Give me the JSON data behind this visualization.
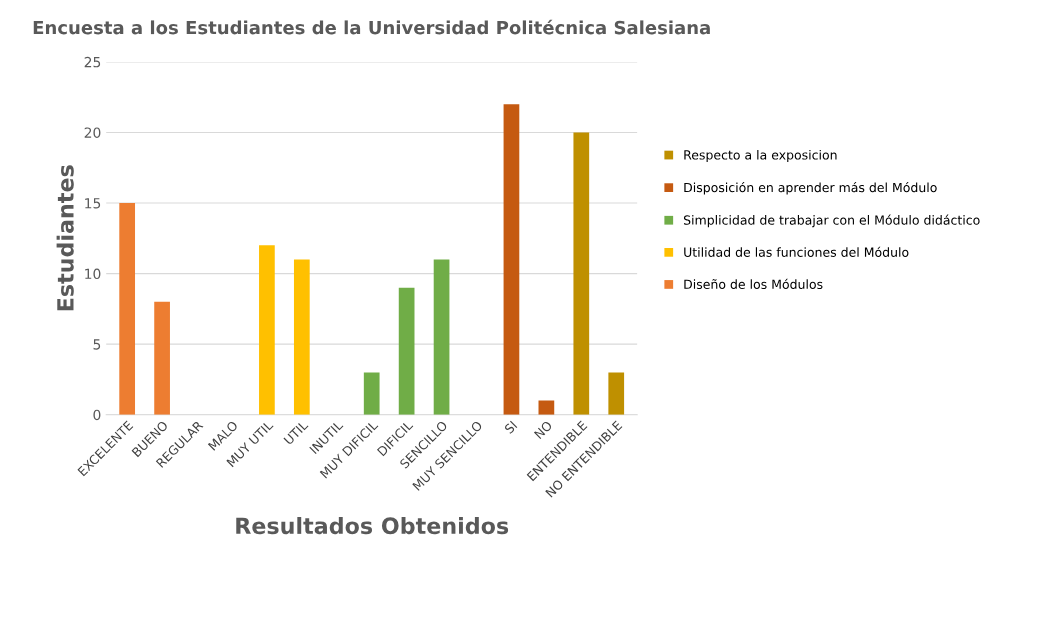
{
  "chart_data": {
    "type": "bar",
    "title": "Encuesta a los Estudiantes de la Universidad Politécnica Salesiana",
    "xlabel": "Resultados Obtenidos",
    "ylabel": "Estudiantes",
    "categories": [
      "EXCELENTE",
      "BUENO",
      "REGULAR",
      "MALO",
      "MUY UTIL",
      "UTIL",
      "INUTIL",
      "MUY DIFICIL",
      "DIFICIL",
      "SENCILLO",
      "MUY SENCILLO",
      "SI",
      "NO",
      "ENTENDIBLE",
      "NO ENTENDIBLE"
    ],
    "series": [
      {
        "name": "Diseño de los Módulos",
        "color": "#ed7d31",
        "values": [
          15,
          8,
          0,
          0,
          null,
          null,
          null,
          null,
          null,
          null,
          null,
          null,
          null,
          null,
          null
        ]
      },
      {
        "name": "Utilidad de las funciones del Módulo",
        "color": "#ffc000",
        "values": [
          null,
          null,
          null,
          null,
          12,
          11,
          0,
          null,
          null,
          null,
          null,
          null,
          null,
          null,
          null
        ]
      },
      {
        "name": "Simplicidad de trabajar con el Módulo didáctico",
        "color": "#70ad47",
        "values": [
          null,
          null,
          null,
          null,
          null,
          null,
          null,
          3,
          9,
          11,
          0,
          null,
          null,
          null,
          null
        ]
      },
      {
        "name": "Disposición en aprender más del Módulo",
        "color": "#c55a11",
        "values": [
          null,
          null,
          null,
          null,
          null,
          null,
          null,
          null,
          null,
          null,
          null,
          22,
          1,
          null,
          null
        ]
      },
      {
        "name": "Respecto a la exposicion",
        "color": "#bf9000",
        "values": [
          null,
          null,
          null,
          null,
          null,
          null,
          null,
          null,
          null,
          null,
          null,
          null,
          null,
          20,
          3
        ]
      }
    ],
    "ylim": [
      0,
      25
    ],
    "yticks": [
      0,
      5,
      10,
      15,
      20,
      25
    ],
    "grid": "y",
    "legend": "right"
  }
}
